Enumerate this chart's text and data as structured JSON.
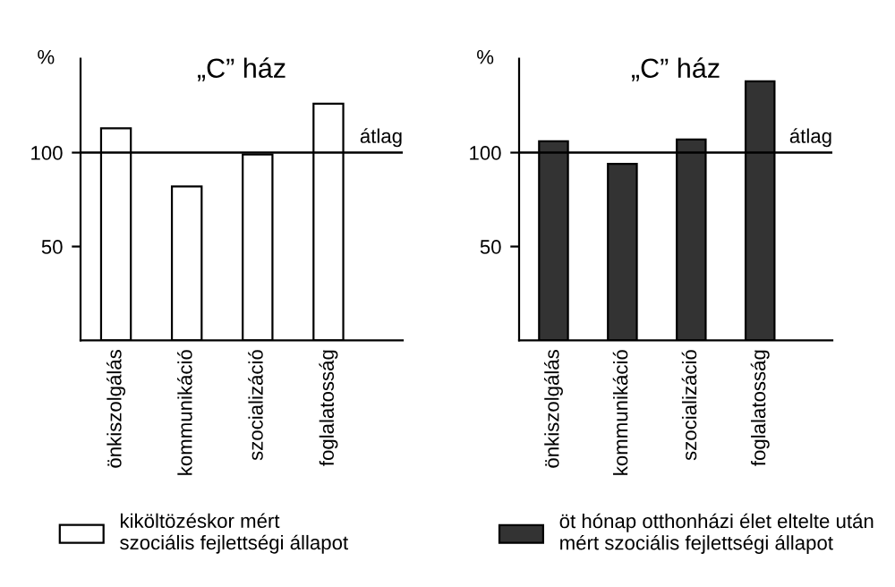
{
  "chart_data": [
    {
      "type": "bar",
      "title": "„C” ház",
      "ylabel": "%",
      "categories": [
        "önkiszolgálás",
        "kommunikáció",
        "szocializáció",
        "foglalatosság"
      ],
      "series": [
        {
          "name": "kiköltözéskor mért\nszociális fejlettségi állapot",
          "color": "#ffffff",
          "values": [
            113,
            82,
            99,
            126
          ]
        }
      ],
      "ylim": [
        0,
        150
      ],
      "yticks": [
        50,
        100
      ],
      "ref_lines": [
        {
          "axis": "y",
          "value": 100,
          "label": "átlag"
        }
      ],
      "legend": "bottom",
      "grid": false
    },
    {
      "type": "bar",
      "title": "„C” ház",
      "ylabel": "%",
      "categories": [
        "önkiszolgálás",
        "kommunikáció",
        "szocializáció",
        "foglalatosság"
      ],
      "series": [
        {
          "name": "öt hónap otthonházi élet eltelte után\nmért szociális fejlettségi állapot",
          "color": "#333333",
          "values": [
            106,
            94,
            107,
            138
          ]
        }
      ],
      "ylim": [
        0,
        150
      ],
      "yticks": [
        50,
        100
      ],
      "ref_lines": [
        {
          "axis": "y",
          "value": 100,
          "label": "átlag"
        }
      ],
      "legend": "bottom",
      "grid": false
    }
  ]
}
